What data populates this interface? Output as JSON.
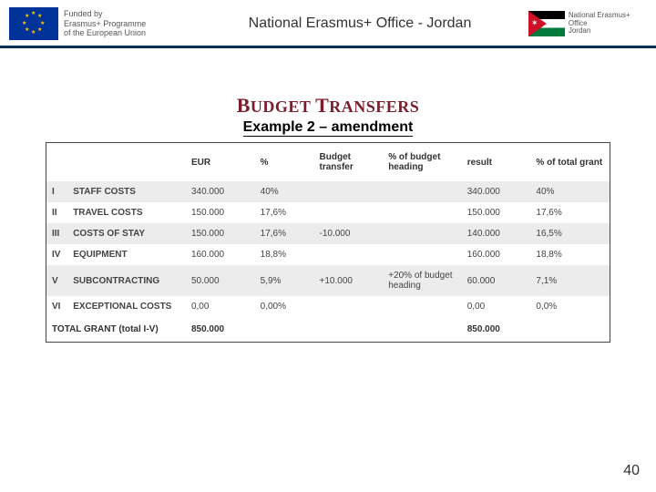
{
  "header": {
    "eu_text_line1": "Funded by",
    "eu_text_line2": "Erasmus+ Programme",
    "eu_text_line3": "of the European Union",
    "center_title": "National Erasmus+ Office - Jordan",
    "right_text_line1": "National Erasmus+ Office",
    "right_text_line2": "Jordan"
  },
  "title": {
    "main_a": "B",
    "main_b": "UDGET ",
    "main_c": "T",
    "main_d": "RANSFERS",
    "subtitle": "Example 2 – amendment"
  },
  "table": {
    "headers": {
      "eur": "EUR",
      "pct": "%",
      "transfer": "Budget transfer",
      "pct_heading": "% of budget heading",
      "result": "result",
      "pct_total": "% of total grant"
    },
    "rows": [
      {
        "num": "I",
        "label": "STAFF COSTS",
        "eur": "340.000",
        "pct": "40%",
        "transfer": "",
        "pct_heading": "",
        "result": "340.000",
        "pct_total": "40%",
        "odd": true
      },
      {
        "num": "II",
        "label": "TRAVEL COSTS",
        "eur": "150.000",
        "pct": "17,6%",
        "transfer": "",
        "pct_heading": "",
        "result": "150.000",
        "pct_total": "17,6%",
        "odd": false
      },
      {
        "num": "III",
        "label": "COSTS OF STAY",
        "eur": "150.000",
        "pct": "17,6%",
        "transfer": "-10.000",
        "pct_heading": "",
        "result": "140.000",
        "pct_total": "16,5%",
        "odd": true
      },
      {
        "num": "IV",
        "label": "EQUIPMENT",
        "eur": "160.000",
        "pct": "18,8%",
        "transfer": "",
        "pct_heading": "",
        "result": "160.000",
        "pct_total": "18,8%",
        "odd": false
      },
      {
        "num": "V",
        "label": "SUBCONTRACTING",
        "eur": "50.000",
        "pct": "5,9%",
        "transfer": "+10.000",
        "pct_heading": "+20% of budget heading",
        "result": "60.000",
        "pct_total": "7,1%",
        "odd": true
      },
      {
        "num": "VI",
        "label": "EXCEPTIONAL COSTS",
        "eur": "0,00",
        "pct": "0,00%",
        "transfer": "",
        "pct_heading": "",
        "result": "0,00",
        "pct_total": "0,0%",
        "odd": false
      }
    ],
    "total": {
      "label": "TOTAL GRANT (total I-V)",
      "eur": "850.000",
      "result": "850.000"
    }
  },
  "page_number": "40",
  "colors": {
    "title": "#7a1f2b",
    "header_rule": "#0a2d5a",
    "row_odd_bg": "#ececec",
    "row_even_bg": "#ffffff"
  }
}
